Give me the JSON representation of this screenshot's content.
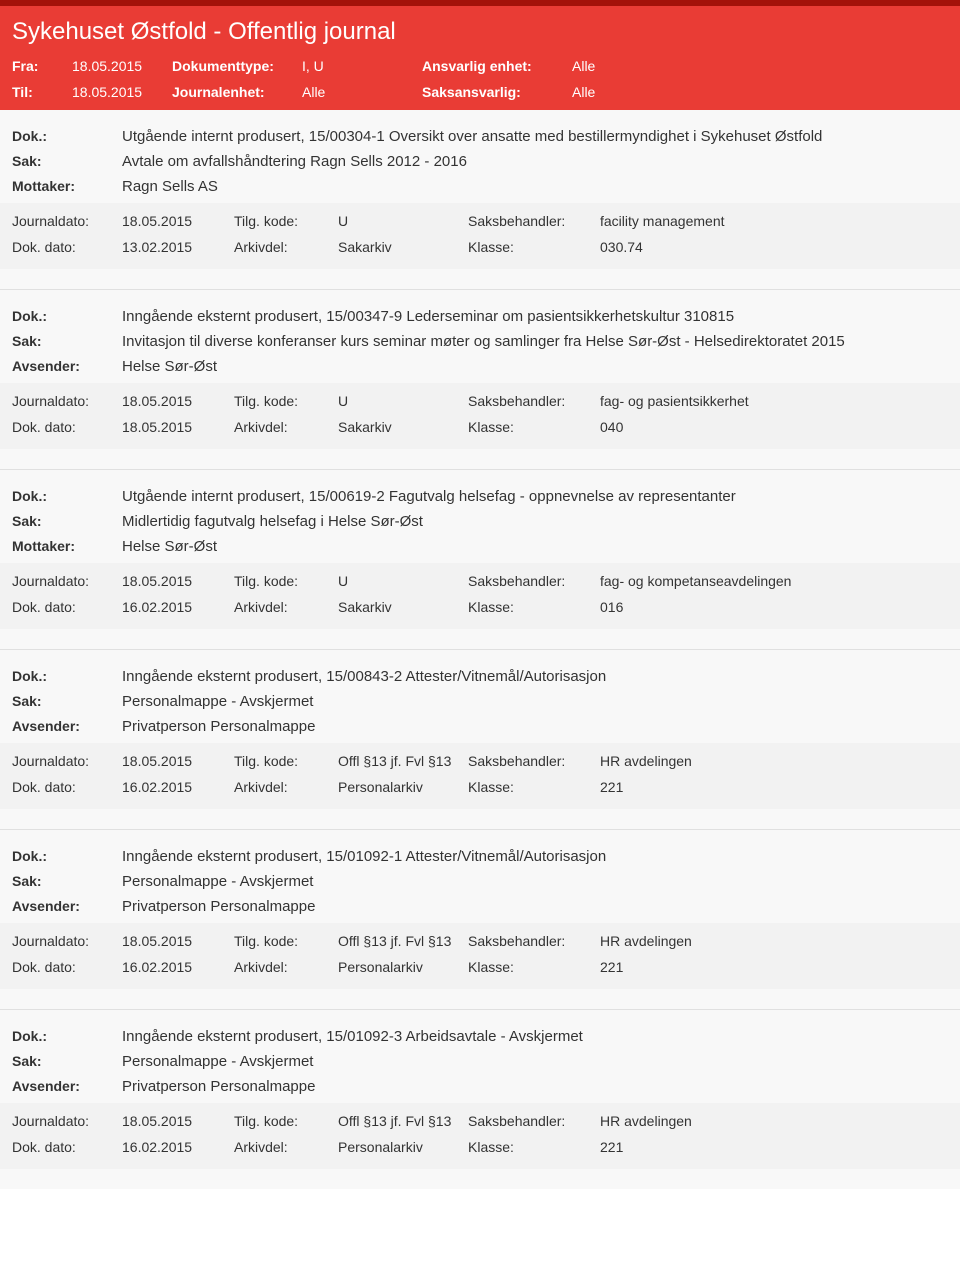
{
  "header": {
    "title": "Sykehuset Østfold - Offentlig journal",
    "fra_label": "Fra:",
    "fra_value": "18.05.2015",
    "til_label": "Til:",
    "til_value": "18.05.2015",
    "doktype_label": "Dokumenttype:",
    "doktype_value": "I, U",
    "journalenhet_label": "Journalenhet:",
    "journalenhet_value": "Alle",
    "ansvarlig_label": "Ansvarlig enhet:",
    "ansvarlig_value": "Alle",
    "saksansvarlig_label": "Saksansvarlig:",
    "saksansvarlig_value": "Alle"
  },
  "labels": {
    "dok": "Dok.:",
    "sak": "Sak:",
    "mottaker": "Mottaker:",
    "avsender": "Avsender:",
    "journaldato": "Journaldato:",
    "dokdato": "Dok. dato:",
    "tilgkode": "Tilg. kode:",
    "arkivdel": "Arkivdel:",
    "saksbehandler": "Saksbehandler:",
    "klasse": "Klasse:"
  },
  "entries": [
    {
      "dok": "Utgående internt produsert, 15/00304-1 Oversikt over ansatte med bestillermyndighet i Sykehuset Østfold",
      "sak": "Avtale om avfallshåndtering Ragn Sells 2012 - 2016",
      "party_label": "Mottaker:",
      "party_value": "Ragn Sells AS",
      "journaldato": "18.05.2015",
      "tilgkode": "U",
      "saksbehandler": "facility management",
      "dokdato": "13.02.2015",
      "arkivdel": "Sakarkiv",
      "klasse": "030.74"
    },
    {
      "dok": "Inngående eksternt produsert, 15/00347-9 Lederseminar om pasientsikkerhetskultur 310815",
      "sak": "Invitasjon til diverse konferanser kurs seminar møter og samlinger fra Helse Sør-Øst - Helsedirektoratet 2015",
      "party_label": "Avsender:",
      "party_value": "Helse Sør-Øst",
      "journaldato": "18.05.2015",
      "tilgkode": "U",
      "saksbehandler": "fag- og pasientsikkerhet",
      "dokdato": "18.05.2015",
      "arkivdel": "Sakarkiv",
      "klasse": "040"
    },
    {
      "dok": "Utgående internt produsert, 15/00619-2 Fagutvalg helsefag - oppnevnelse av representanter",
      "sak": "Midlertidig fagutvalg helsefag i Helse Sør-Øst",
      "party_label": "Mottaker:",
      "party_value": "Helse Sør-Øst",
      "journaldato": "18.05.2015",
      "tilgkode": "U",
      "saksbehandler": "fag- og kompetanseavdelingen",
      "dokdato": "16.02.2015",
      "arkivdel": "Sakarkiv",
      "klasse": "016"
    },
    {
      "dok": "Inngående eksternt produsert, 15/00843-2 Attester/Vitnemål/Autorisasjon",
      "sak": "Personalmappe - Avskjermet",
      "party_label": "Avsender:",
      "party_value": "Privatperson Personalmappe",
      "journaldato": "18.05.2015",
      "tilgkode": "Offl §13 jf. Fvl §13",
      "saksbehandler": "HR avdelingen",
      "dokdato": "16.02.2015",
      "arkivdel": "Personalarkiv",
      "klasse": "221"
    },
    {
      "dok": "Inngående eksternt produsert, 15/01092-1 Attester/Vitnemål/Autorisasjon",
      "sak": "Personalmappe - Avskjermet",
      "party_label": "Avsender:",
      "party_value": "Privatperson Personalmappe",
      "journaldato": "18.05.2015",
      "tilgkode": "Offl §13 jf. Fvl §13",
      "saksbehandler": "HR avdelingen",
      "dokdato": "16.02.2015",
      "arkivdel": "Personalarkiv",
      "klasse": "221"
    },
    {
      "dok": "Inngående eksternt produsert, 15/01092-3 Arbeidsavtale - Avskjermet",
      "sak": "Personalmappe - Avskjermet",
      "party_label": "Avsender:",
      "party_value": "Privatperson Personalmappe",
      "journaldato": "18.05.2015",
      "tilgkode": "Offl §13 jf. Fvl §13",
      "saksbehandler": "HR avdelingen",
      "dokdato": "16.02.2015",
      "arkivdel": "Personalarkiv",
      "klasse": "221"
    }
  ]
}
